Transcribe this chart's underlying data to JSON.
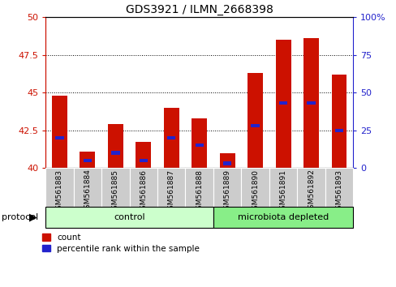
{
  "title": "GDS3921 / ILMN_2668398",
  "samples": [
    "GSM561883",
    "GSM561884",
    "GSM561885",
    "GSM561886",
    "GSM561887",
    "GSM561888",
    "GSM561889",
    "GSM561890",
    "GSM561891",
    "GSM561892",
    "GSM561893"
  ],
  "count_values": [
    44.8,
    41.1,
    42.9,
    41.7,
    44.0,
    43.3,
    41.0,
    46.3,
    48.5,
    48.6,
    46.2
  ],
  "percentile_values": [
    20,
    5,
    10,
    5,
    20,
    15,
    3,
    28,
    43,
    43,
    25
  ],
  "ylim_left": [
    40,
    50
  ],
  "ylim_right": [
    0,
    100
  ],
  "yticks_left": [
    40,
    42.5,
    45,
    47.5,
    50
  ],
  "yticks_right": [
    0,
    25,
    50,
    75,
    100
  ],
  "ytick_labels_right": [
    "0",
    "25",
    "50",
    "75",
    "100%"
  ],
  "bar_color": "#cc1100",
  "blue_color": "#2222cc",
  "bar_width": 0.55,
  "n_control": 6,
  "n_microbiota": 5,
  "control_color": "#ccffcc",
  "microbiota_color": "#88ee88",
  "protocol_label": "protocol",
  "control_label": "control",
  "microbiota_label": "microbiota depleted",
  "legend_count": "count",
  "legend_percentile": "percentile rank within the sample",
  "left_axis_color": "#cc1100",
  "right_axis_color": "#2222cc",
  "base_value": 40.0,
  "title_fontsize": 10,
  "tick_fontsize": 8,
  "sample_fontsize": 6.5,
  "proto_fontsize": 8,
  "legend_fontsize": 7.5
}
